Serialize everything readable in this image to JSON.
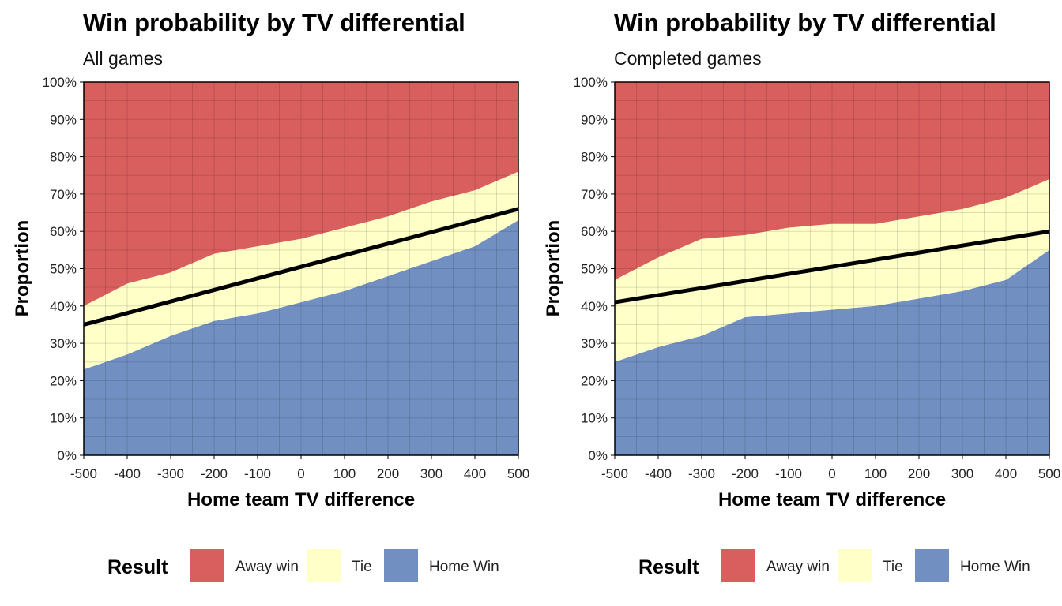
{
  "legend": {
    "title": "Result",
    "items": [
      {
        "label": "Away win",
        "color": "#d95f5f"
      },
      {
        "label": "Tie",
        "color": "#ffffc8"
      },
      {
        "label": "Home Win",
        "color": "#728fc1"
      }
    ]
  },
  "chart_data": [
    {
      "type": "area",
      "title": "Win probability by TV differential",
      "subtitle": "All games",
      "xlabel": "Home team TV difference",
      "ylabel": "Proportion",
      "xlim": [
        -500,
        500
      ],
      "ylim": [
        0,
        1
      ],
      "xticks": [
        "-500",
        "-400",
        "-300",
        "-200",
        "-100",
        "0",
        "100",
        "200",
        "300",
        "400",
        "500"
      ],
      "yticks": [
        "0%",
        "10%",
        "20%",
        "30%",
        "40%",
        "50%",
        "60%",
        "70%",
        "80%",
        "90%",
        "100%"
      ],
      "grid": true,
      "x": [
        -500,
        -400,
        -300,
        -200,
        -100,
        0,
        100,
        200,
        300,
        400,
        500
      ],
      "series": [
        {
          "name": "Home Win",
          "values": [
            0.23,
            0.27,
            0.32,
            0.36,
            0.38,
            0.41,
            0.44,
            0.48,
            0.52,
            0.56,
            0.63
          ]
        },
        {
          "name": "Tie",
          "values": [
            0.17,
            0.19,
            0.17,
            0.18,
            0.18,
            0.17,
            0.17,
            0.16,
            0.16,
            0.15,
            0.13
          ]
        },
        {
          "name": "Away win",
          "values": [
            0.6,
            0.54,
            0.51,
            0.46,
            0.44,
            0.42,
            0.39,
            0.36,
            0.32,
            0.29,
            0.24
          ]
        }
      ],
      "trend": {
        "x": [
          -500,
          500
        ],
        "y": [
          0.35,
          0.66
        ]
      }
    },
    {
      "type": "area",
      "title": "Win probability by TV differential",
      "subtitle": "Completed games",
      "xlabel": "Home team TV difference",
      "ylabel": "Proportion",
      "xlim": [
        -500,
        500
      ],
      "ylim": [
        0,
        1
      ],
      "xticks": [
        "-500",
        "-400",
        "-300",
        "-200",
        "-100",
        "0",
        "100",
        "200",
        "300",
        "400",
        "500"
      ],
      "yticks": [
        "0%",
        "10%",
        "20%",
        "30%",
        "40%",
        "50%",
        "60%",
        "70%",
        "80%",
        "90%",
        "100%"
      ],
      "grid": true,
      "x": [
        -500,
        -400,
        -300,
        -200,
        -100,
        0,
        100,
        200,
        300,
        400,
        500
      ],
      "series": [
        {
          "name": "Home Win",
          "values": [
            0.25,
            0.29,
            0.32,
            0.37,
            0.38,
            0.39,
            0.4,
            0.42,
            0.44,
            0.47,
            0.55
          ]
        },
        {
          "name": "Tie",
          "values": [
            0.22,
            0.24,
            0.26,
            0.22,
            0.23,
            0.23,
            0.22,
            0.22,
            0.22,
            0.22,
            0.19
          ]
        },
        {
          "name": "Away win",
          "values": [
            0.53,
            0.47,
            0.42,
            0.41,
            0.39,
            0.38,
            0.38,
            0.36,
            0.34,
            0.31,
            0.26
          ]
        }
      ],
      "trend": {
        "x": [
          -500,
          500
        ],
        "y": [
          0.41,
          0.6
        ]
      }
    }
  ]
}
